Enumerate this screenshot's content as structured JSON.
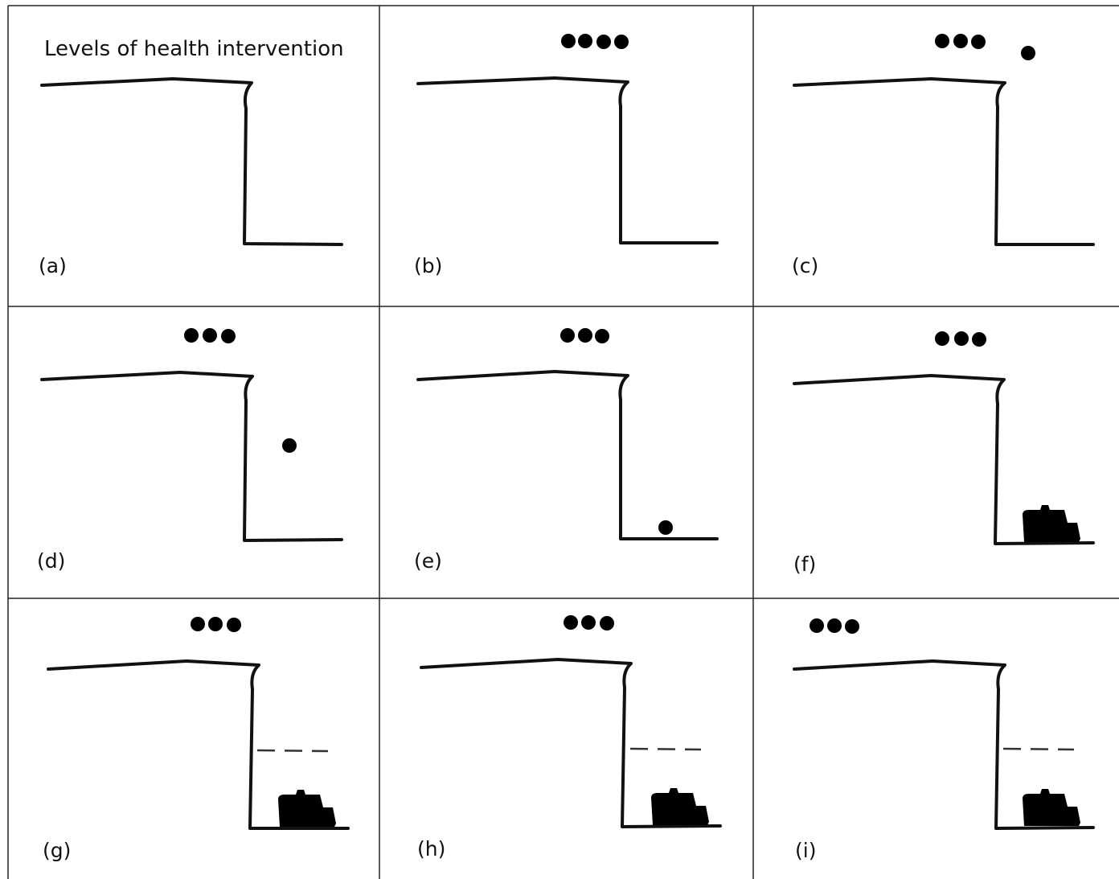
{
  "title": "Levels of health intervention",
  "panels": [
    {
      "label": "(a)"
    },
    {
      "label": "(b)"
    },
    {
      "label": "(c)"
    },
    {
      "label": "(d)"
    },
    {
      "label": "(e)"
    },
    {
      "label": "(f)"
    },
    {
      "label": "(g)"
    },
    {
      "label": "(h)"
    },
    {
      "label": "(i)"
    }
  ],
  "colors": {
    "line": "#111111",
    "figure_light": "#8a8a8a",
    "figure_mid": "#555555",
    "figure_dark": "#222222"
  }
}
